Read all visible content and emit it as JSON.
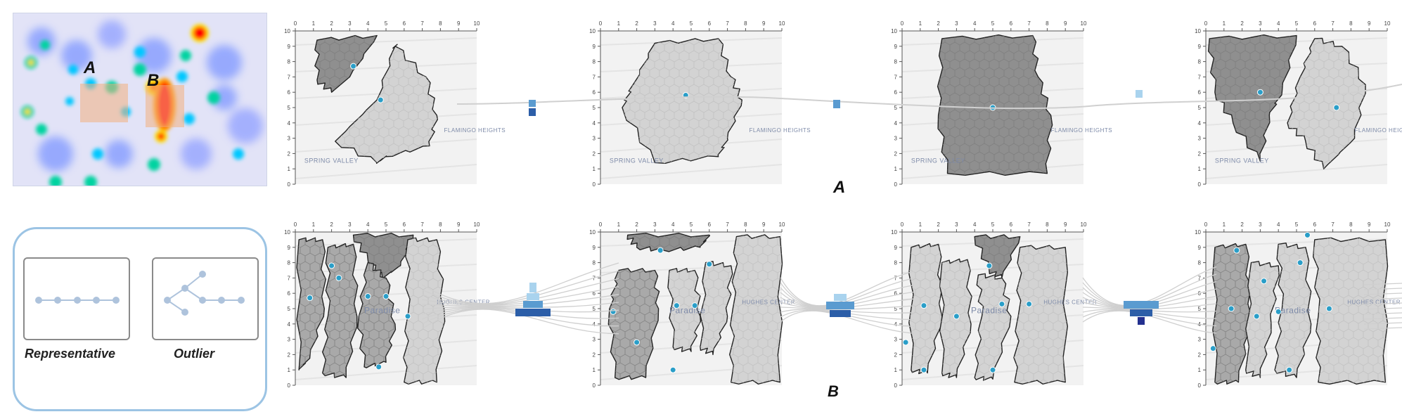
{
  "heatmap": {
    "label_a": "A",
    "label_b": "B",
    "blob_colors": [
      "#ff0000",
      "#ffdd00",
      "#00e5a0",
      "#4060ff"
    ]
  },
  "row_a": {
    "label": "A",
    "maps": [
      {
        "name": "SPRING VALLEY",
        "name2": "FLAMINGO HEIGHTS"
      },
      {
        "name": "SPRING VALLEY",
        "name2": "FLAMINGO HEIGHTS"
      },
      {
        "name": "SPRING VALLEY",
        "name2": "FLAMINGO HEIGHTS"
      },
      {
        "name": "SPRING VALLEY",
        "name2": "FLAMINGO HEIGHTS"
      }
    ]
  },
  "row_b": {
    "label": "B",
    "maps": [
      {
        "name": "Paradise",
        "name2": "HUGHES CENTER"
      },
      {
        "name": "Paradise",
        "name2": "HUGHES CENTER"
      },
      {
        "name": "Paradise",
        "name2": "HUGHES CENTER"
      },
      {
        "name": "Paradise",
        "name2": "HUGHES CENTER"
      }
    ]
  },
  "axis_ticks": [
    "0",
    "1",
    "2",
    "3",
    "4",
    "5",
    "6",
    "7",
    "8",
    "9",
    "10"
  ],
  "legend": {
    "representative_label": "Representative",
    "outlier_label": "Outlier"
  },
  "colors": {
    "region_dark": "#8f8f8f",
    "region_mid": "#a9a9a9",
    "region_light": "#d3d3d3",
    "centroid": "#2a9ec8",
    "flow_light": "#a9d3ee",
    "flow_mid": "#5a9bd0",
    "flow_dark": "#2c5ea8",
    "flow_darkest": "#23308f",
    "legend_border": "#9cc4e4",
    "glyph": "#aec3dc"
  }
}
